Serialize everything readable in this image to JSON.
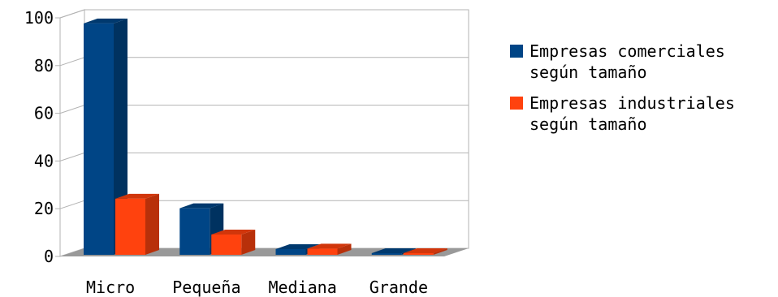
{
  "chart_data": {
    "type": "bar",
    "categories": [
      "Micro",
      "Pequeña",
      "Mediana",
      "Grande"
    ],
    "series": [
      {
        "name": "Empresas comerciales\nsegún tamaño",
        "values": [
          97,
          19.5,
          2.4,
          0.2
        ],
        "color": "#004586"
      },
      {
        "name": "Empresas industriales\nsegún tamaño",
        "values": [
          23.5,
          8.5,
          2.6,
          0.7
        ],
        "color": "#ff420e"
      }
    ],
    "y_ticks": [
      "0",
      "20",
      "40",
      "60",
      "80",
      "100"
    ],
    "ylim": [
      0,
      100
    ],
    "grid": true,
    "legend_position": "right",
    "three_d": true
  }
}
